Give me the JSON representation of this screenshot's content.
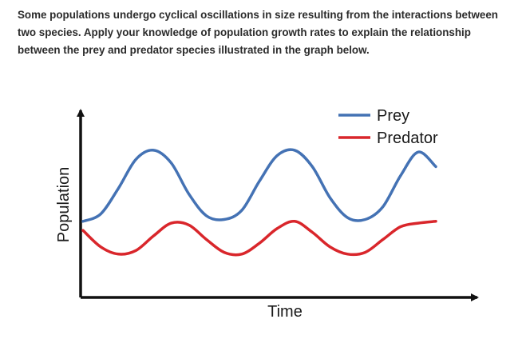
{
  "question": {
    "text": "Some populations undergo cyclical oscillations in size resulting from the interactions between two species. Apply your knowledge of population growth rates to explain the relationship between the prey and predator species illustrated in the graph below."
  },
  "chart_data": {
    "type": "line",
    "title": "",
    "xlabel": "Time",
    "ylabel": "Population",
    "xlim": [
      0,
      10
    ],
    "ylim": [
      0,
      10
    ],
    "grid": false,
    "legend_position": "top-right",
    "series": [
      {
        "name": "Prey",
        "color": "#4472b4",
        "x": [
          0,
          0.5,
          1,
          1.5,
          2,
          2.5,
          3,
          3.5,
          4,
          4.5,
          5,
          5.5,
          6,
          6.5,
          7,
          7.5,
          8,
          8.5,
          9,
          9.5,
          10
        ],
        "values": [
          4.0,
          4.4,
          5.8,
          7.4,
          7.9,
          7.2,
          5.5,
          4.3,
          4.1,
          4.6,
          6.2,
          7.6,
          7.9,
          7.0,
          5.3,
          4.2,
          4.1,
          4.8,
          6.5,
          7.8,
          7.0
        ]
      },
      {
        "name": "Predator",
        "color": "#d9262b",
        "x": [
          0,
          0.5,
          1,
          1.5,
          2,
          2.5,
          3,
          3.5,
          4,
          4.5,
          5,
          5.5,
          6,
          6.5,
          7,
          7.5,
          8,
          8.5,
          9,
          9.5,
          10
        ],
        "values": [
          3.5,
          2.6,
          2.2,
          2.4,
          3.2,
          3.9,
          3.8,
          3.0,
          2.3,
          2.2,
          2.8,
          3.6,
          4.0,
          3.4,
          2.6,
          2.2,
          2.3,
          3.0,
          3.7,
          3.9,
          4.0
        ]
      }
    ]
  }
}
